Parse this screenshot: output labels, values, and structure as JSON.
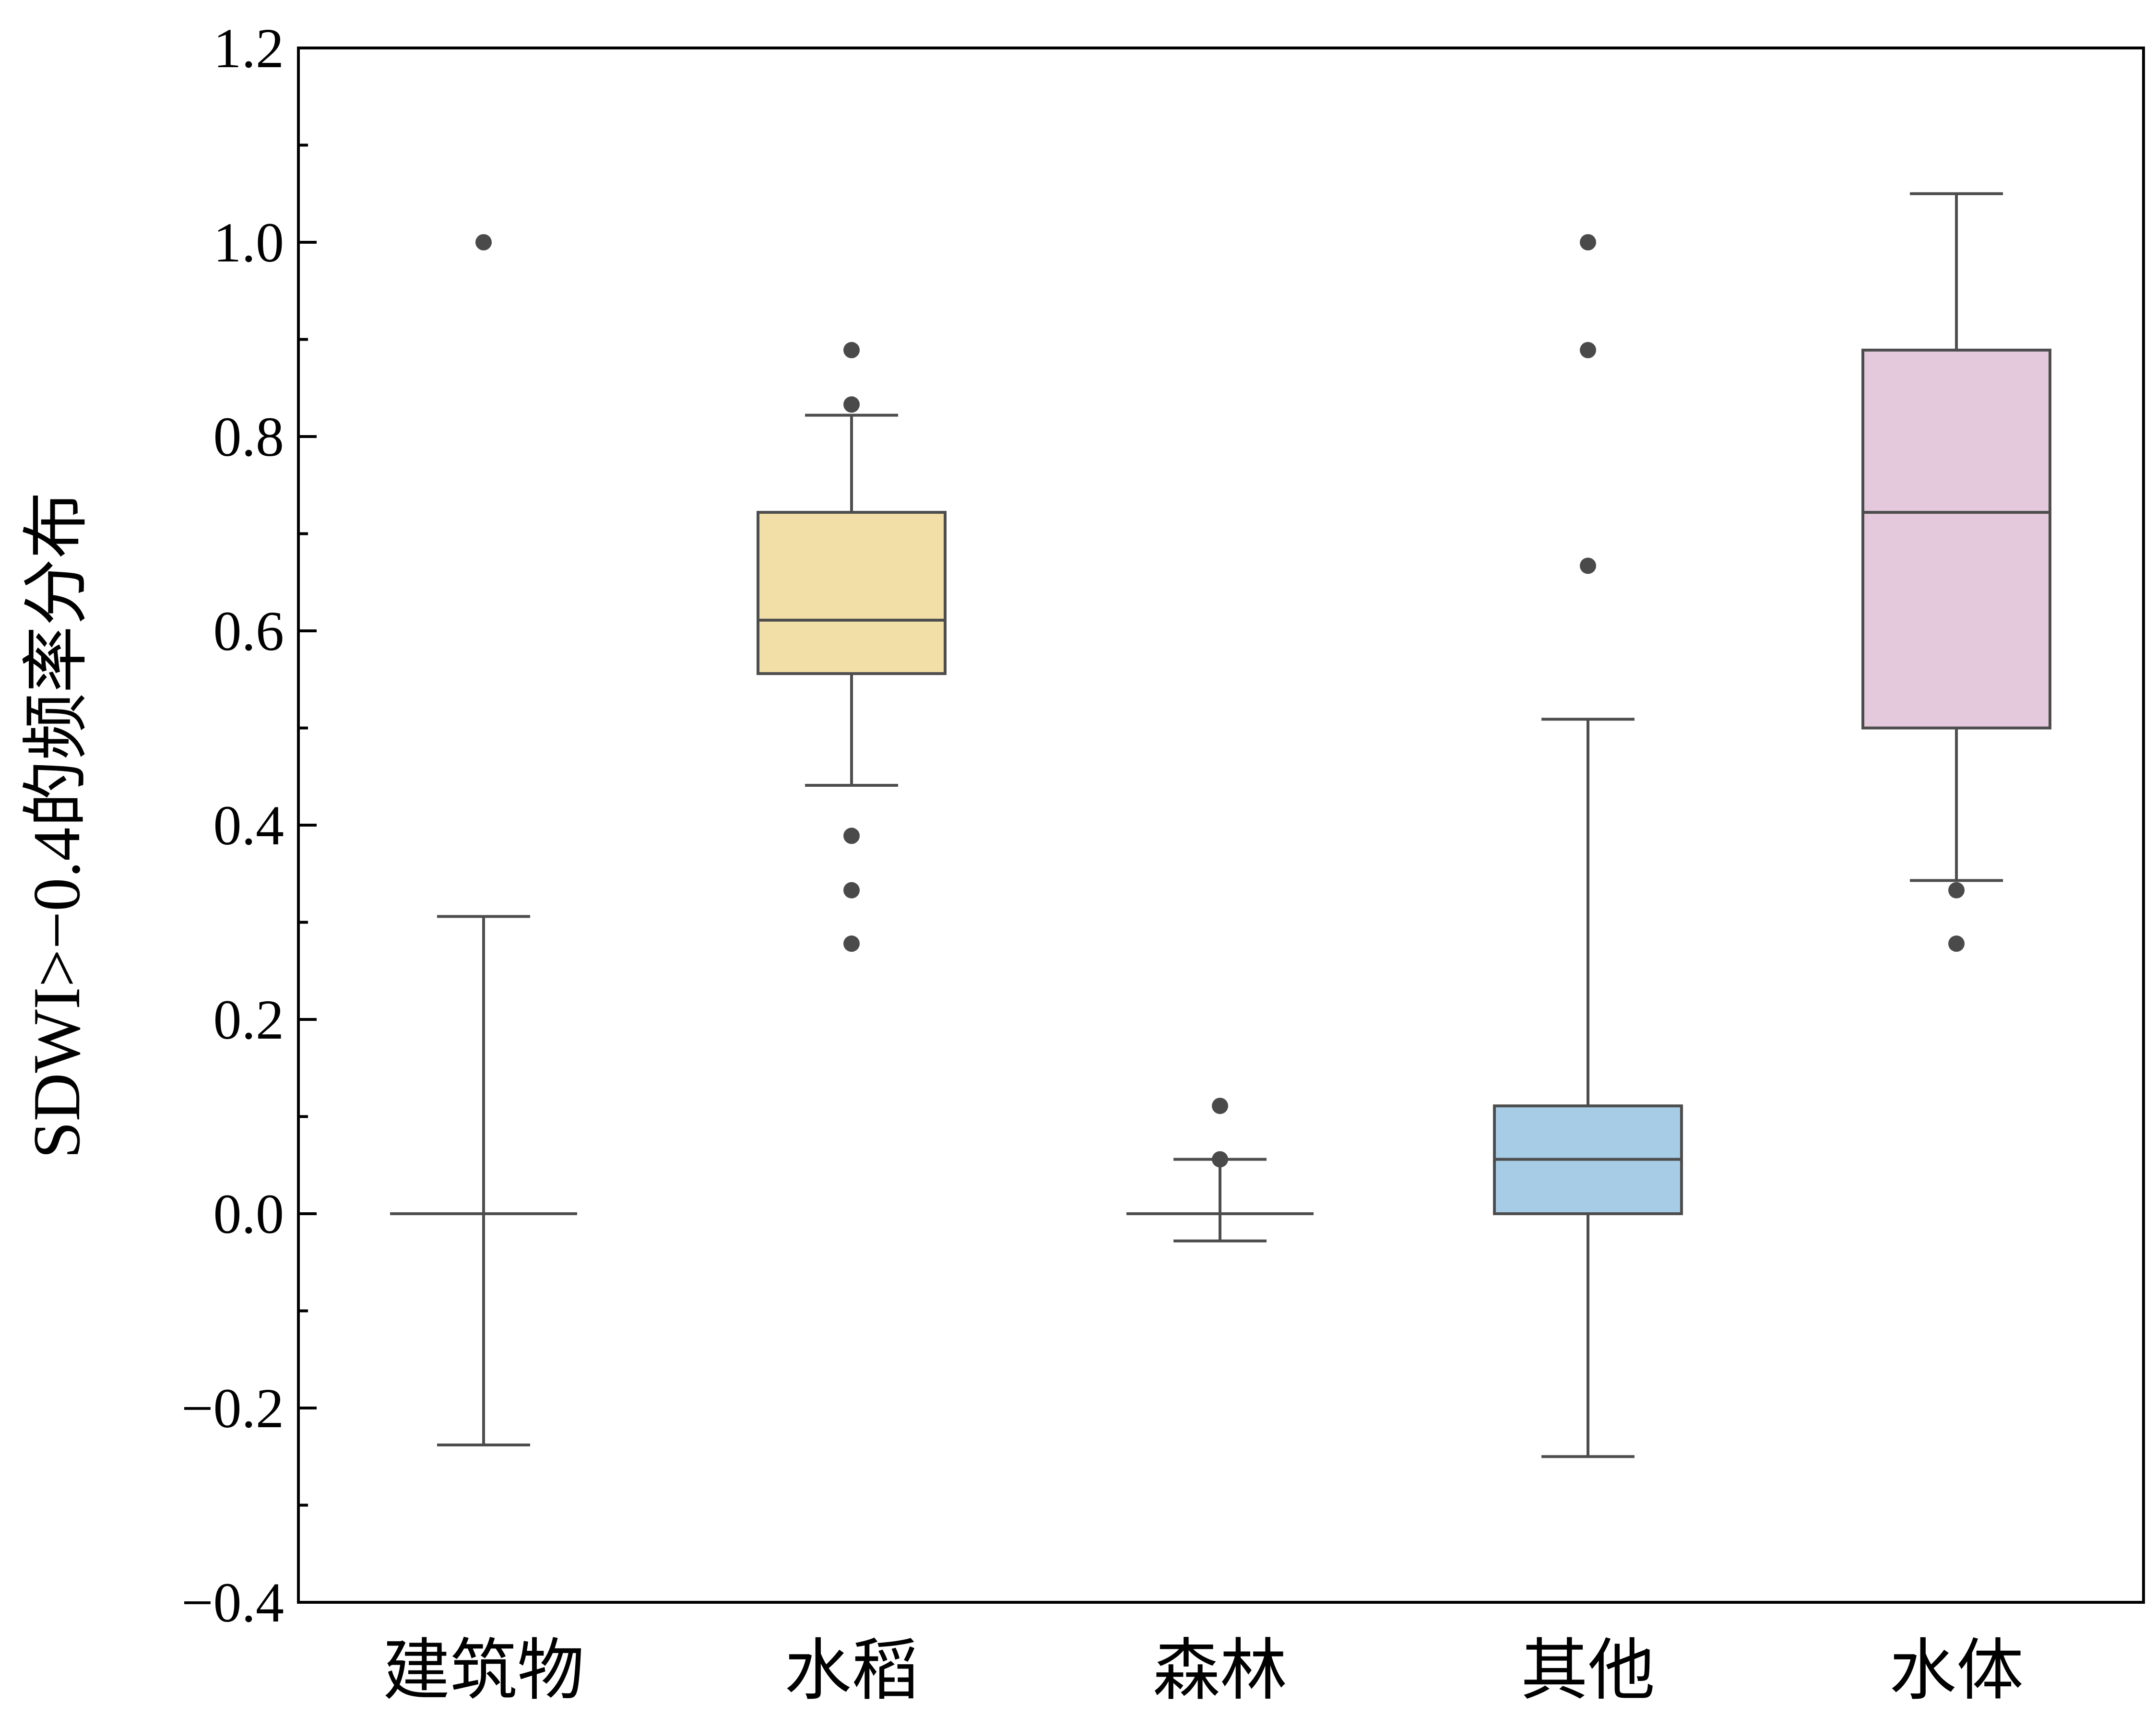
{
  "chart_data": {
    "type": "box",
    "title": "",
    "xlabel": "",
    "ylabel": "SDWI>−0.4的频率分布",
    "ylim": [
      -0.4,
      1.2
    ],
    "yticks": [
      -0.4,
      -0.2,
      0.0,
      0.2,
      0.4,
      0.6,
      0.8,
      1.0,
      1.2
    ],
    "ytick_labels": [
      "−0.4",
      "−0.2",
      "0.0",
      "0.2",
      "0.4",
      "0.6",
      "0.8",
      "1.0",
      "1.2"
    ],
    "y_minor_ticks": true,
    "grid": false,
    "line_color": "#4d4d4d",
    "categories": [
      "建筑物",
      "水稻",
      "森林",
      "其他",
      "水体"
    ],
    "boxes": [
      {
        "category": "建筑物",
        "q1": 0.0,
        "median": 0.0,
        "q3": 0.0,
        "whisker_low": -0.238,
        "whisker_high": 0.306,
        "outliers": [
          1.0
        ],
        "fill": "#ffffff"
      },
      {
        "category": "水稻",
        "q1": 0.556,
        "median": 0.611,
        "q3": 0.722,
        "whisker_low": 0.441,
        "whisker_high": 0.822,
        "outliers": [
          0.278,
          0.333,
          0.389,
          0.833,
          0.889
        ],
        "fill": "#f2dfa7"
      },
      {
        "category": "森林",
        "q1": 0.0,
        "median": 0.0,
        "q3": 0.0,
        "whisker_low": -0.028,
        "whisker_high": 0.056,
        "outliers": [
          0.056,
          0.111
        ],
        "fill": "#ffffff"
      },
      {
        "category": "其他",
        "q1": 0.0,
        "median": 0.056,
        "q3": 0.111,
        "whisker_low": -0.25,
        "whisker_high": 0.509,
        "outliers": [
          0.667,
          0.889,
          1.0
        ],
        "fill": "#a6cde5"
      },
      {
        "category": "水体",
        "q1": 0.5,
        "median": 0.722,
        "q3": 0.889,
        "whisker_low": 0.343,
        "whisker_high": 1.05,
        "outliers": [
          0.278,
          0.333
        ],
        "fill": "#e4c8dc"
      }
    ]
  }
}
